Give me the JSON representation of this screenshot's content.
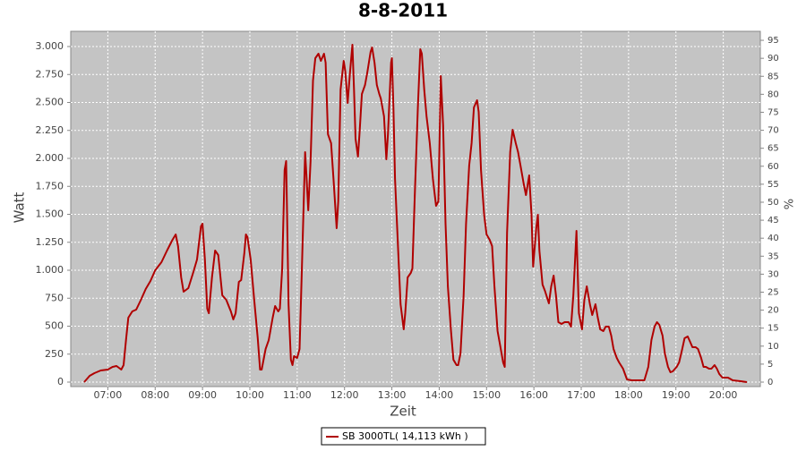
{
  "chart_data": {
    "type": "line",
    "title": "8-8-2011",
    "x_label": "Zeit",
    "y_label": "Watt",
    "y2_label": "%",
    "x": [
      "06:30",
      "06:37",
      "06:43",
      "06:51",
      "07:00",
      "07:06",
      "07:11",
      "07:17",
      "07:20",
      "07:23",
      "07:26",
      "07:31",
      "07:36",
      "07:42",
      "07:48",
      "07:54",
      "08:00",
      "08:08",
      "08:15",
      "08:22",
      "08:26",
      "08:29",
      "08:33",
      "08:36",
      "08:42",
      "08:48",
      "08:53",
      "08:58",
      "09:00",
      "09:03",
      "09:06",
      "09:08",
      "09:12",
      "09:16",
      "09:20",
      "09:25",
      "09:30",
      "09:36",
      "09:39",
      "09:42",
      "09:46",
      "09:49",
      "09:53",
      "09:55",
      "09:57",
      "10:01",
      "10:05",
      "10:10",
      "10:13",
      "10:15",
      "10:20",
      "10:24",
      "10:29",
      "10:32",
      "10:36",
      "10:38",
      "10:41",
      "10:44",
      "10:46",
      "10:47",
      "10:49",
      "10:52",
      "10:54",
      "10:56",
      "11:00",
      "11:03",
      "11:06",
      "11:10",
      "11:12",
      "11:14",
      "11:17",
      "11:20",
      "11:23",
      "11:27",
      "11:30",
      "11:34",
      "11:36",
      "11:39",
      "11:43",
      "11:46",
      "11:50",
      "11:52",
      "11:55",
      "11:59",
      "12:01",
      "12:04",
      "12:07",
      "12:10",
      "12:12",
      "12:14",
      "12:17",
      "12:19",
      "12:22",
      "12:26",
      "12:29",
      "12:33",
      "12:35",
      "12:38",
      "12:41",
      "12:44",
      "12:46",
      "12:50",
      "12:53",
      "12:55",
      "12:59",
      "13:00",
      "13:02",
      "13:04",
      "13:08",
      "13:11",
      "13:15",
      "13:17",
      "13:20",
      "13:24",
      "13:26",
      "13:29",
      "13:33",
      "13:36",
      "13:38",
      "13:41",
      "13:44",
      "13:48",
      "13:52",
      "13:56",
      "13:59",
      "14:02",
      "14:05",
      "14:08",
      "14:11",
      "14:15",
      "14:18",
      "14:22",
      "14:24",
      "14:27",
      "14:31",
      "14:34",
      "14:38",
      "14:41",
      "14:44",
      "14:48",
      "14:50",
      "14:53",
      "14:57",
      "15:00",
      "15:04",
      "15:07",
      "15:10",
      "15:14",
      "15:17",
      "15:21",
      "15:23",
      "15:26",
      "15:30",
      "15:33",
      "15:37",
      "15:40",
      "15:43",
      "15:47",
      "15:50",
      "15:54",
      "15:57",
      "15:59",
      "16:03",
      "16:05",
      "16:07",
      "16:11",
      "16:14",
      "16:19",
      "16:22",
      "16:25",
      "16:28",
      "16:31",
      "16:35",
      "16:39",
      "16:44",
      "16:47",
      "16:50",
      "16:54",
      "16:57",
      "17:01",
      "17:04",
      "17:07",
      "17:11",
      "17:14",
      "17:18",
      "17:21",
      "17:24",
      "17:28",
      "17:31",
      "17:35",
      "17:38",
      "17:41",
      "17:45",
      "17:48",
      "17:53",
      "17:58",
      "18:04",
      "18:10",
      "18:17",
      "18:20",
      "18:25",
      "18:29",
      "18:33",
      "18:36",
      "18:39",
      "18:43",
      "18:46",
      "18:50",
      "18:53",
      "18:56",
      "19:01",
      "19:04",
      "19:08",
      "19:11",
      "19:15",
      "19:18",
      "19:21",
      "19:25",
      "19:28",
      "19:32",
      "19:35",
      "19:38",
      "19:42",
      "19:45",
      "19:49",
      "19:52",
      "19:55",
      "19:59",
      "20:06",
      "20:12",
      "20:22",
      "20:30"
    ],
    "series": [
      {
        "name": "SB 3000TL( 14,113 kWh )",
        "color": "#b00000",
        "values": [
          0,
          56,
          80,
          104,
          112,
          136,
          144,
          112,
          152,
          376,
          576,
          632,
          648,
          736,
          832,
          904,
          1000,
          1072,
          1176,
          1272,
          1320,
          1216,
          936,
          808,
          840,
          976,
          1096,
          1392,
          1416,
          1096,
          656,
          616,
          936,
          1176,
          1136,
          776,
          736,
          632,
          560,
          616,
          896,
          912,
          1152,
          1320,
          1296,
          1096,
          776,
          392,
          112,
          112,
          296,
          376,
          576,
          680,
          632,
          656,
          1016,
          1896,
          1976,
          1576,
          696,
          200,
          152,
          232,
          216,
          296,
          1016,
          2056,
          1816,
          1536,
          1976,
          2696,
          2896,
          2936,
          2872,
          2936,
          2856,
          2216,
          2136,
          1816,
          1376,
          1616,
          2616,
          2872,
          2776,
          2496,
          2776,
          3016,
          2616,
          2176,
          2016,
          2216,
          2576,
          2656,
          2776,
          2952,
          2992,
          2856,
          2656,
          2576,
          2536,
          2376,
          1992,
          2216,
          2856,
          2896,
          2456,
          1816,
          1176,
          696,
          472,
          616,
          936,
          976,
          1016,
          1656,
          2456,
          2976,
          2936,
          2616,
          2376,
          2136,
          1816,
          1576,
          1616,
          2736,
          2296,
          1416,
          856,
          456,
          200,
          152,
          152,
          256,
          776,
          1416,
          1936,
          2136,
          2456,
          2520,
          2416,
          1896,
          1496,
          1320,
          1272,
          1216,
          856,
          456,
          336,
          176,
          136,
          1336,
          2056,
          2256,
          2136,
          2056,
          1936,
          1776,
          1672,
          1848,
          1496,
          1032,
          1376,
          1496,
          1176,
          872,
          816,
          704,
          856,
          952,
          776,
          536,
          520,
          536,
          536,
          496,
          776,
          1352,
          616,
          472,
          736,
          856,
          696,
          600,
          696,
          576,
          472,
          456,
          496,
          496,
          416,
          296,
          216,
          176,
          120,
          24,
          16,
          16,
          16,
          16,
          136,
          376,
          496,
          536,
          512,
          416,
          256,
          136,
          88,
          96,
          136,
          176,
          296,
          392,
          408,
          360,
          312,
          312,
          296,
          216,
          136,
          136,
          120,
          120,
          152,
          120,
          72,
          40,
          40,
          16,
          8,
          0
        ]
      }
    ],
    "xlim": [
      "06:13",
      "20:47"
    ],
    "xticks": [
      "07:00",
      "08:00",
      "09:00",
      "10:00",
      "11:00",
      "12:00",
      "13:00",
      "14:00",
      "15:00",
      "16:00",
      "17:00",
      "18:00",
      "19:00",
      "20:00"
    ],
    "ylim": [
      -40,
      3136
    ],
    "yticks": [
      0,
      250,
      500,
      750,
      {
        "value": 1000,
        "label": "1.000"
      },
      {
        "value": 1250,
        "label": "1.250"
      },
      {
        "value": 1500,
        "label": "1.500"
      },
      {
        "value": 1750,
        "label": "1.750"
      },
      {
        "value": 2000,
        "label": "2.000"
      },
      {
        "value": 2250,
        "label": "2.250"
      },
      {
        "value": 2500,
        "label": "2.500"
      },
      {
        "value": 2750,
        "label": "2.750"
      },
      {
        "value": 3000,
        "label": "3.000"
      }
    ],
    "y2lim": [
      -1.24,
      97.5
    ],
    "y2ticks": [
      0,
      5,
      10,
      15,
      20,
      25,
      30,
      35,
      40,
      45,
      50,
      55,
      60,
      65,
      70,
      75,
      80,
      85,
      90,
      95
    ],
    "grid": true
  }
}
